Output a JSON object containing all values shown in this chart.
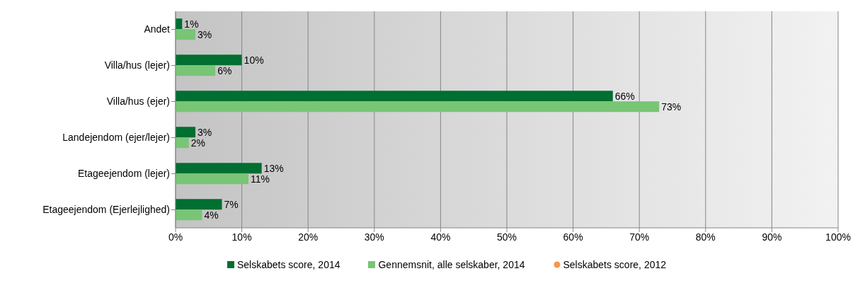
{
  "chart_data": {
    "type": "bar",
    "orientation": "horizontal",
    "categories": [
      "Andet",
      "Villa/hus (lejer)",
      "Villa/hus (ejer)",
      "Landejendom (ejer/lejer)",
      "Etageejendom (lejer)",
      "Etageejendom (Ejerlejlighed)"
    ],
    "series": [
      {
        "name": "Selskabets score, 2014",
        "color": "#006f31",
        "values": [
          1,
          10,
          66,
          3,
          13,
          7
        ],
        "value_labels": [
          "1%",
          "10%",
          "66%",
          "3%",
          "13%",
          "7%"
        ]
      },
      {
        "name": "Gennemsnit, alle selskaber, 2014",
        "color": "#77c575",
        "values": [
          3,
          6,
          73,
          2,
          11,
          4
        ],
        "value_labels": [
          "3%",
          "6%",
          "73%",
          "2%",
          "11%",
          "4%"
        ]
      },
      {
        "name": "Selskabets score, 2012",
        "type": "scatter",
        "marker": "circle",
        "color": "#f79646",
        "values": [
          null,
          null,
          null,
          null,
          null,
          null
        ]
      }
    ],
    "xlim": [
      0,
      100
    ],
    "xticks": [
      {
        "value": 0,
        "label": "0%"
      },
      {
        "value": 10,
        "label": "10%"
      },
      {
        "value": 20,
        "label": "20%"
      },
      {
        "value": 30,
        "label": "30%"
      },
      {
        "value": 40,
        "label": "40%"
      },
      {
        "value": 50,
        "label": "50%"
      },
      {
        "value": 60,
        "label": "60%"
      },
      {
        "value": 70,
        "label": "70%"
      },
      {
        "value": 80,
        "label": "80%"
      },
      {
        "value": 90,
        "label": "90%"
      },
      {
        "value": 100,
        "label": "100%"
      }
    ],
    "grid": "x",
    "legend": "bottom"
  }
}
